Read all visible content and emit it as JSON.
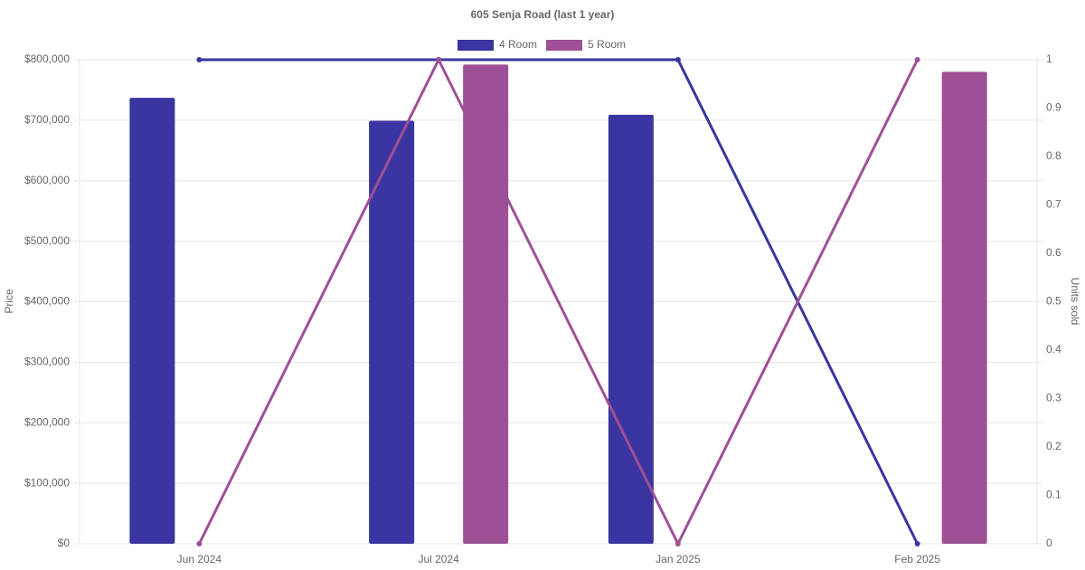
{
  "chart_data": {
    "type": "bar-line",
    "title": "605 Senja Road (last 1 year)",
    "ylabel": "Price",
    "y2label": "Units sold",
    "categories": [
      "Jun 2024",
      "Jul 2024",
      "Jan 2025",
      "Feb 2025"
    ],
    "series": [
      {
        "name": "4 Room",
        "color": "#3a35a0",
        "values": [
          737000,
          699000,
          709000,
          null
        ],
        "units_sold": [
          1,
          1,
          1,
          0
        ]
      },
      {
        "name": "5 Room",
        "color": "#9e5096",
        "values": [
          null,
          792000,
          null,
          780000
        ],
        "units_sold": [
          0,
          1,
          0,
          1
        ]
      }
    ],
    "ylim": [
      0,
      800000
    ],
    "yticks": [
      {
        "value": 0,
        "label": "$0"
      },
      {
        "value": 100000,
        "label": "$100,000"
      },
      {
        "value": 200000,
        "label": "$200,000"
      },
      {
        "value": 300000,
        "label": "$300,000"
      },
      {
        "value": 400000,
        "label": "$400,000"
      },
      {
        "value": 500000,
        "label": "$500,000"
      },
      {
        "value": 600000,
        "label": "$600,000"
      },
      {
        "value": 700000,
        "label": "$700,000"
      },
      {
        "value": 800000,
        "label": "$800,000"
      }
    ],
    "y2lim": [
      0,
      1
    ],
    "y2ticks": [
      0,
      0.1,
      0.2,
      0.3,
      0.4,
      0.5,
      0.6,
      0.7,
      0.8,
      0.9,
      1
    ],
    "grid": true,
    "legend": "top"
  }
}
